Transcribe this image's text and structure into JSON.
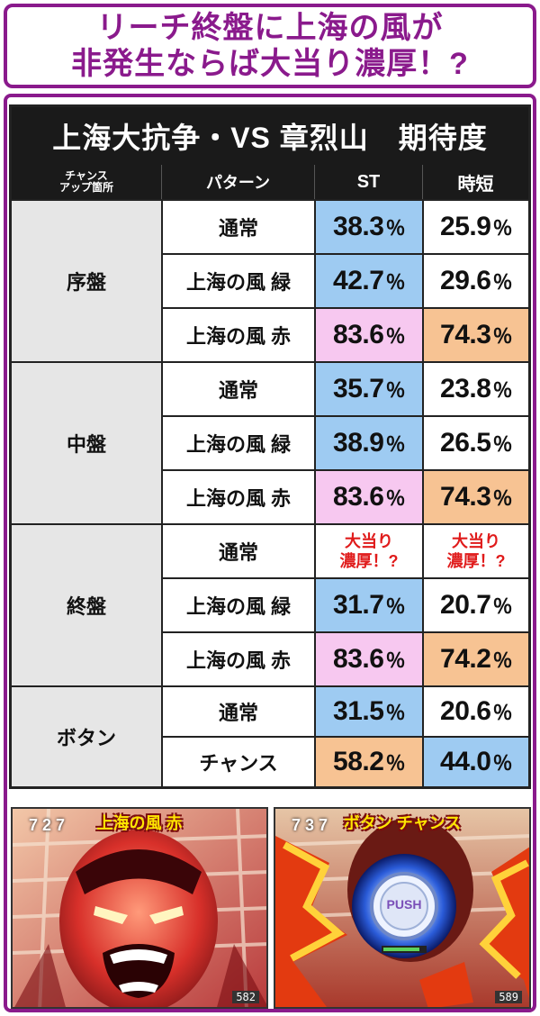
{
  "headline": {
    "line1": "リーチ終盤に上海の風が",
    "line2": "非発生ならば大当り濃厚！?"
  },
  "table": {
    "title": "上海大抗争・VS 章烈山　期待度",
    "headers": {
      "chance": "チャンス\nアップ箇所",
      "pattern": "パターン",
      "st": "ST",
      "jitan": "時短"
    },
    "groups": [
      {
        "name": "序盤",
        "rows": [
          {
            "pattern": "通常",
            "st": "38.3",
            "jitan": "25.9"
          },
          {
            "pattern": "上海の風 緑",
            "st": "42.7",
            "jitan": "29.6"
          },
          {
            "pattern": "上海の風 赤",
            "st": "83.6",
            "jitan": "74.3"
          }
        ]
      },
      {
        "name": "中盤",
        "rows": [
          {
            "pattern": "通常",
            "st": "35.7",
            "jitan": "23.8"
          },
          {
            "pattern": "上海の風 緑",
            "st": "38.9",
            "jitan": "26.5"
          },
          {
            "pattern": "上海の風 赤",
            "st": "83.6",
            "jitan": "74.3"
          }
        ]
      },
      {
        "name": "終盤",
        "rows": [
          {
            "pattern": "通常",
            "st_line1": "大当り",
            "st_line2": "濃厚！?",
            "jitan_line1": "大当り",
            "jitan_line2": "濃厚！?"
          },
          {
            "pattern": "上海の風 緑",
            "st": "31.7",
            "jitan": "20.7"
          },
          {
            "pattern": "上海の風 赤",
            "st": "83.6",
            "jitan": "74.2"
          }
        ]
      },
      {
        "name": "ボタン",
        "rows": [
          {
            "pattern": "通常",
            "st": "31.5",
            "jitan": "20.6"
          },
          {
            "pattern": "チャンス",
            "st": "58.2",
            "jitan": "44.0"
          }
        ]
      }
    ],
    "percent": "％",
    "colors": {
      "blue": "#9ecbf2",
      "pink": "#f7c8f0",
      "orange": "#f7c393",
      "frame": "#8a1a8c"
    }
  },
  "screenshots": [
    {
      "label": "上海の風 赤",
      "reel": "7 2 7",
      "counter": "582"
    },
    {
      "label": "ボタン チャンス",
      "reel": "7 3 7",
      "push": "PUSH",
      "counter": "589"
    }
  ]
}
